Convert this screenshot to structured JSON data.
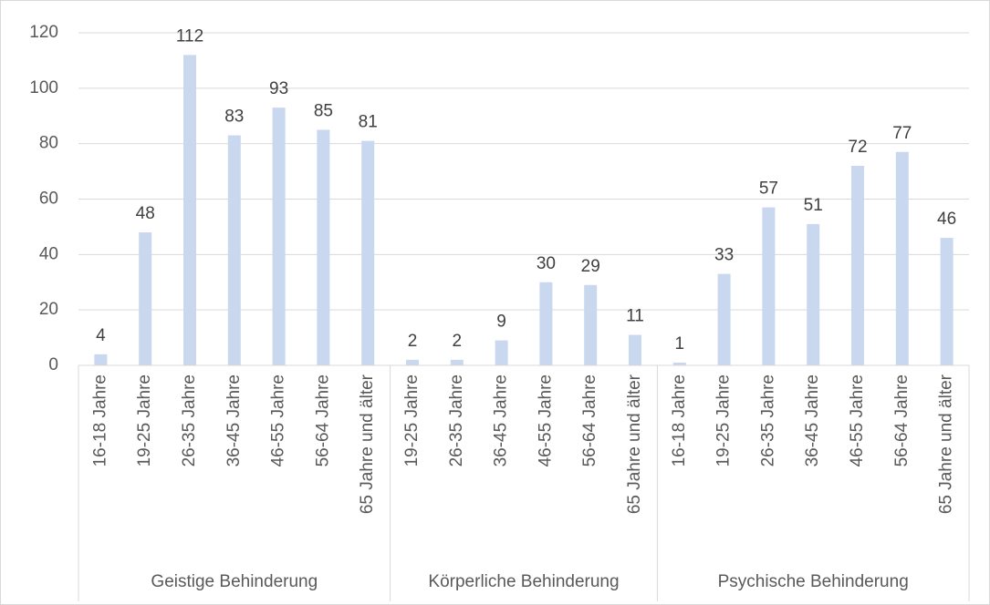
{
  "chart_data": {
    "type": "bar",
    "groups": [
      {
        "name": "Geistige Behinderung",
        "categories": [
          "16-18 Jahre",
          "19-25 Jahre",
          "26-35 Jahre",
          "36-45 Jahre",
          "46-55 Jahre",
          "56-64 Jahre",
          "65 Jahre und älter"
        ],
        "values": [
          4,
          48,
          112,
          83,
          93,
          85,
          81
        ]
      },
      {
        "name": "Körperliche Behinderung",
        "categories": [
          "19-25 Jahre",
          "26-35 Jahre",
          "36-45 Jahre",
          "46-55 Jahre",
          "56-64 Jahre",
          "65 Jahre und älter"
        ],
        "values": [
          2,
          2,
          9,
          30,
          29,
          11
        ]
      },
      {
        "name": "Psychische Behinderung",
        "categories": [
          "16-18 Jahre",
          "19-25 Jahre",
          "26-35 Jahre",
          "36-45 Jahre",
          "46-55 Jahre",
          "56-64 Jahre",
          "65 Jahre und älter"
        ],
        "values": [
          1,
          33,
          57,
          51,
          72,
          77,
          46
        ]
      }
    ],
    "color": "#c9d7ef",
    "ylim": [
      0,
      120
    ],
    "yticks": [
      0,
      20,
      40,
      60,
      80,
      100,
      120
    ],
    "grid": true
  }
}
